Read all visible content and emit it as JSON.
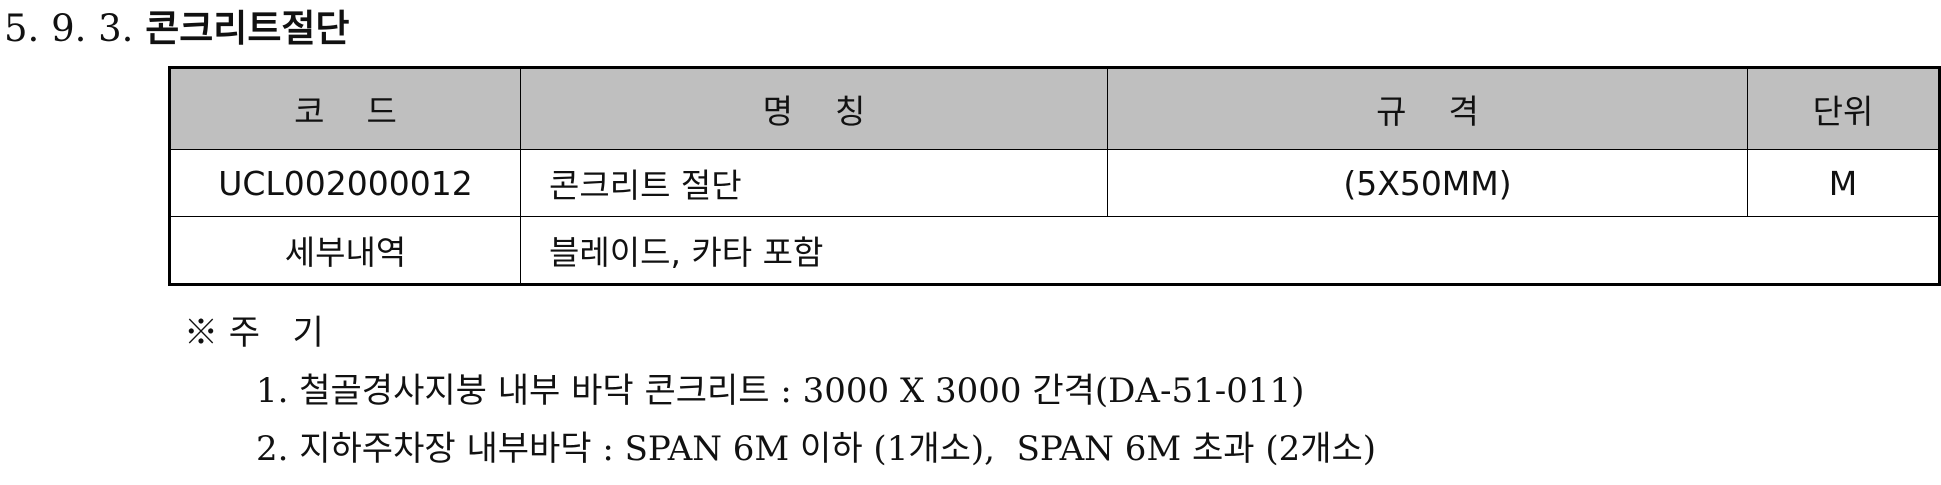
{
  "section": {
    "number": "5. 9. 3.",
    "title": "콘크리트절단"
  },
  "table": {
    "headers": {
      "code": "코    드",
      "name": "명    칭",
      "spec": "규    격",
      "unit": "단위"
    },
    "row": {
      "code": "UCL002000012",
      "name": "콘크리트 절단",
      "spec": "(5X50MM)",
      "unit": "M"
    },
    "detail": {
      "label": "세부내역",
      "value": "블레이드, 카타 포함"
    }
  },
  "notes": {
    "heading": "※ 주   기",
    "items": [
      "1. 철골경사지붕 내부 바닥 콘크리트 : 3000 X 3000 간격(DA-51-011)",
      "2. 지하주차장 내부바닥 : SPAN 6M 이하 (1개소),  SPAN 6M 초과 (2개소)"
    ]
  }
}
